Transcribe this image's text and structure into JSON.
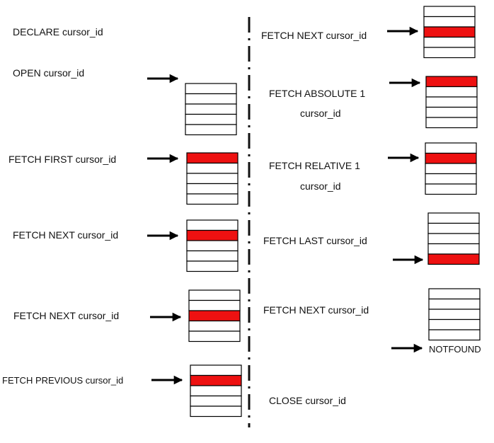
{
  "steps": [
    {
      "label": "DECLARE cursor_id"
    },
    {
      "label": "OPEN cursor_id"
    },
    {
      "label": "FETCH FIRST cursor_id",
      "highlighted_row": 1
    },
    {
      "label": "FETCH NEXT cursor_id",
      "highlighted_row": 2
    },
    {
      "label": "FETCH NEXT cursor_id",
      "highlighted_row": 3
    },
    {
      "label": "FETCH PREVIOUS cursor_id",
      "highlighted_row": 2
    },
    {
      "label": "FETCH NEXT cursor_id",
      "highlighted_row": 3
    },
    {
      "label_line1": "FETCH ABSOLUTE 1",
      "label_line2": "cursor_id",
      "highlighted_row": 1
    },
    {
      "label_line1": "FETCH RELATIVE 1",
      "label_line2": "cursor_id",
      "highlighted_row": 2
    },
    {
      "label": "FETCH LAST cursor_id",
      "highlighted_row": 5
    },
    {
      "label": "FETCH NEXT cursor_id",
      "status": "NOTFOUND"
    },
    {
      "label": "CLOSE cursor_id"
    }
  ],
  "colors": {
    "highlight": "#ee1111",
    "line": "#000000",
    "divider": "#111111"
  }
}
